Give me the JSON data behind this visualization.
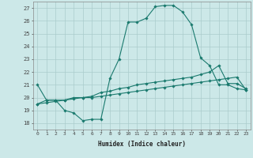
{
  "xlabel": "Humidex (Indice chaleur)",
  "bg_color": "#cce8e8",
  "grid_color": "#aacccc",
  "line_color": "#1a7a6e",
  "xlim": [
    -0.5,
    23.5
  ],
  "ylim": [
    17.5,
    27.5
  ],
  "xticks": [
    0,
    1,
    2,
    3,
    4,
    5,
    6,
    7,
    8,
    9,
    10,
    11,
    12,
    13,
    14,
    15,
    16,
    17,
    18,
    19,
    20,
    21,
    22,
    23
  ],
  "yticks": [
    18,
    19,
    20,
    21,
    22,
    23,
    24,
    25,
    26,
    27
  ],
  "line1_x": [
    0,
    1,
    2,
    3,
    4,
    5,
    6,
    7,
    8,
    9,
    10,
    11,
    12,
    13,
    14,
    15,
    16,
    17,
    18,
    19,
    20,
    21,
    22,
    23
  ],
  "line1_y": [
    21.0,
    19.8,
    19.8,
    19.0,
    18.8,
    18.2,
    18.3,
    18.3,
    21.5,
    23.0,
    25.9,
    25.9,
    26.2,
    27.1,
    27.2,
    27.2,
    26.7,
    25.7,
    23.1,
    22.5,
    21.0,
    21.0,
    20.7,
    20.6
  ],
  "line2_x": [
    0,
    1,
    2,
    3,
    4,
    5,
    6,
    7,
    8,
    9,
    10,
    11,
    12,
    13,
    14,
    15,
    16,
    17,
    18,
    19,
    20,
    21,
    22,
    23
  ],
  "line2_y": [
    19.5,
    19.8,
    19.8,
    19.8,
    20.0,
    20.0,
    20.1,
    20.4,
    20.5,
    20.7,
    20.8,
    21.0,
    21.1,
    21.2,
    21.3,
    21.4,
    21.5,
    21.6,
    21.8,
    22.0,
    22.5,
    21.1,
    21.1,
    20.7
  ],
  "line3_x": [
    0,
    1,
    2,
    3,
    4,
    5,
    6,
    7,
    8,
    9,
    10,
    11,
    12,
    13,
    14,
    15,
    16,
    17,
    18,
    19,
    20,
    21,
    22,
    23
  ],
  "line3_y": [
    19.5,
    19.6,
    19.7,
    19.8,
    19.9,
    20.0,
    20.0,
    20.1,
    20.2,
    20.3,
    20.4,
    20.5,
    20.6,
    20.7,
    20.8,
    20.9,
    21.0,
    21.1,
    21.2,
    21.3,
    21.4,
    21.5,
    21.6,
    20.6
  ]
}
